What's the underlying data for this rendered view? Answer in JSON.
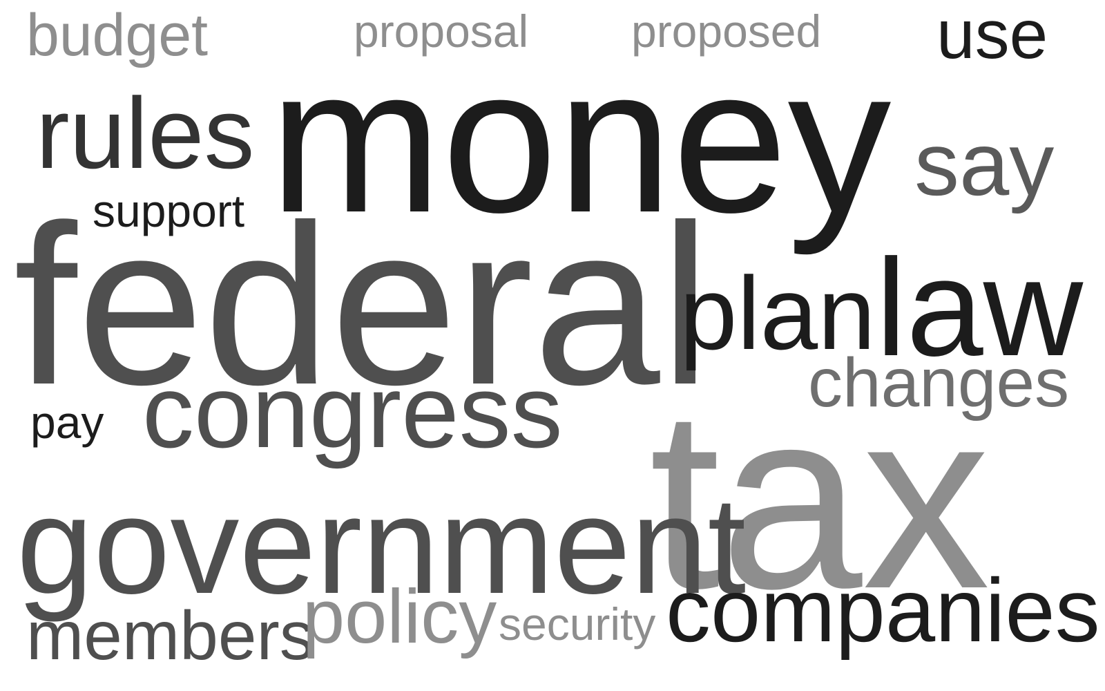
{
  "word_cloud": {
    "words": [
      {
        "id": "budget",
        "text": "budget",
        "shade": "#8e8e8e"
      },
      {
        "id": "proposal",
        "text": "proposal",
        "shade": "#8e8e8e"
      },
      {
        "id": "proposed",
        "text": "proposed",
        "shade": "#8e8e8e"
      },
      {
        "id": "use",
        "text": "use",
        "shade": "#1c1c1c"
      },
      {
        "id": "rules",
        "text": "rules",
        "shade": "#333333"
      },
      {
        "id": "money",
        "text": "money",
        "shade": "#1c1c1c"
      },
      {
        "id": "say",
        "text": "say",
        "shade": "#5a5a5a"
      },
      {
        "id": "support",
        "text": "support",
        "shade": "#1c1c1c"
      },
      {
        "id": "federal",
        "text": "federal",
        "shade": "#4f4f4f"
      },
      {
        "id": "plan",
        "text": "plan",
        "shade": "#1c1c1c"
      },
      {
        "id": "law",
        "text": "law",
        "shade": "#1c1c1c"
      },
      {
        "id": "changes",
        "text": "changes",
        "shade": "#6f6f6f"
      },
      {
        "id": "pay",
        "text": "pay",
        "shade": "#1c1c1c"
      },
      {
        "id": "congress",
        "text": "congress",
        "shade": "#4f4f4f"
      },
      {
        "id": "tax",
        "text": "tax",
        "shade": "#8e8e8e"
      },
      {
        "id": "government",
        "text": "government",
        "shade": "#4f4f4f"
      },
      {
        "id": "companies",
        "text": "companies",
        "shade": "#1c1c1c"
      },
      {
        "id": "members",
        "text": "members",
        "shade": "#4f4f4f"
      },
      {
        "id": "policy",
        "text": "policy",
        "shade": "#8e8e8e"
      },
      {
        "id": "security",
        "text": "security",
        "shade": "#8e8e8e"
      }
    ]
  }
}
